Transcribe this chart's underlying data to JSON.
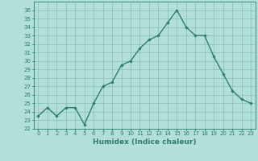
{
  "xlabel": "Humidex (Indice chaleur)",
  "ylabel": "",
  "x": [
    0,
    1,
    2,
    3,
    4,
    5,
    6,
    7,
    8,
    9,
    10,
    11,
    12,
    13,
    14,
    15,
    16,
    17,
    18,
    19,
    20,
    21,
    22,
    23
  ],
  "y": [
    23.5,
    24.5,
    23.5,
    24.5,
    24.5,
    22.5,
    25.0,
    27.0,
    27.5,
    29.5,
    30.0,
    31.5,
    32.5,
    33.0,
    34.5,
    36.0,
    34.0,
    33.0,
    33.0,
    30.5,
    28.5,
    26.5,
    25.5,
    25.0
  ],
  "ylim": [
    22,
    37
  ],
  "xlim": [
    -0.5,
    23.5
  ],
  "yticks": [
    22,
    23,
    24,
    25,
    26,
    27,
    28,
    29,
    30,
    31,
    32,
    33,
    34,
    35,
    36
  ],
  "xticks": [
    0,
    1,
    2,
    3,
    4,
    5,
    6,
    7,
    8,
    9,
    10,
    11,
    12,
    13,
    14,
    15,
    16,
    17,
    18,
    19,
    20,
    21,
    22,
    23
  ],
  "line_color": "#2e7d6e",
  "marker": "D",
  "marker_size": 1.8,
  "line_width": 1.0,
  "bg_color": "#b2e0d8",
  "grid_color": "#7ab8b0",
  "tick_label_fontsize": 5.0,
  "xlabel_fontsize": 6.5,
  "title_fontsize": 7.5
}
